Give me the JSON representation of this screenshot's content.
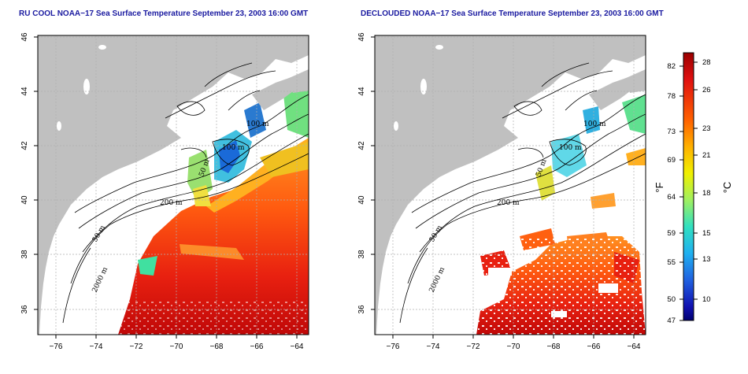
{
  "panels": [
    {
      "id": "left",
      "title": "RU COOL NOAA−17 Sea Surface Temperature September 23, 2003 16:00 GMT",
      "contour_labels": [
        "100 m",
        "100 m",
        "50 m",
        "200 m",
        "50 m",
        "2000 m"
      ]
    },
    {
      "id": "right",
      "title": "DECLOUDED NOAA−17 Sea Surface Temperature September 23, 2003 16:00 GMT",
      "contour_labels": [
        "100 m",
        "100 m",
        "50 m",
        "200 m",
        "50 m",
        "2000 m"
      ]
    }
  ],
  "axes": {
    "x_ticks": [
      "−76",
      "−74",
      "−72",
      "−70",
      "−68",
      "−66",
      "−64"
    ],
    "y_ticks": [
      "46",
      "44",
      "42",
      "40",
      "38",
      "36"
    ]
  },
  "colorbar": {
    "fahrenheit_label": "°F",
    "celsius_label": "°C",
    "fahrenheit_ticks": [
      "82",
      "78",
      "73",
      "69",
      "64",
      "59",
      "55",
      "50",
      "47"
    ],
    "celsius_ticks": [
      "28",
      "26",
      "23",
      "21",
      "18",
      "15",
      "13",
      "10"
    ],
    "colors": [
      "#a00000",
      "#e01010",
      "#ff5000",
      "#ffa000",
      "#f0e000",
      "#b0f040",
      "#40e0a0",
      "#20c0e0",
      "#2070e0",
      "#1010b0",
      "#000080"
    ]
  },
  "colors": {
    "land": "#c0c0c0",
    "title_text": "#1a1aa0",
    "grid": "#b0b0b0"
  }
}
